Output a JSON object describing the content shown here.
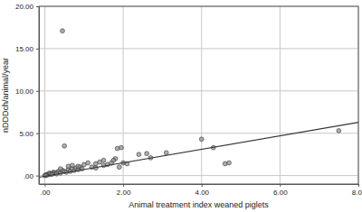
{
  "chart_data": {
    "type": "scatter",
    "x_label": "Animal treatment index weaned piglets",
    "y_label": "nDDDch/animal/year",
    "xlim": [
      -0.15,
      8.0
    ],
    "ylim": [
      -1,
      20
    ],
    "xticks": [
      {
        "value": 0,
        "label": ".00"
      },
      {
        "value": 2,
        "label": "2.00"
      },
      {
        "value": 4,
        "label": "4.00"
      },
      {
        "value": 6,
        "label": "6.00"
      },
      {
        "value": 8,
        "label": "8.00"
      }
    ],
    "yticks": [
      {
        "value": 0,
        "label": ".00"
      },
      {
        "value": 5,
        "label": "5.00"
      },
      {
        "value": 10,
        "label": "10.00"
      },
      {
        "value": 15,
        "label": "15.00"
      },
      {
        "value": 20,
        "label": "20.00"
      }
    ],
    "grid": true,
    "series": [
      {
        "type": "scatter",
        "marker": "circle",
        "color": "#8c8c8c",
        "x": [
          0.45,
          0.5,
          1.85,
          1.95,
          2.4,
          2.7,
          3.1,
          4.0,
          4.3,
          4.6,
          4.7,
          7.5,
          2.6,
          1.0,
          1.1,
          1.2,
          1.3,
          1.4,
          1.5,
          1.6,
          1.7,
          1.8,
          1.9,
          2.0,
          2.1,
          1.75,
          1.5,
          1.3,
          0.02,
          0.05,
          0.08,
          0.1,
          0.12,
          0.15,
          0.2,
          0.22,
          0.25,
          0.3,
          0.35,
          0.4,
          0.45,
          0.5,
          0.55,
          0.6,
          0.65,
          0.7,
          0.75,
          0.8,
          0.85,
          0.9,
          0.95,
          0.3,
          0.18,
          0.6,
          0.7,
          0.85,
          0.4,
          0.0,
          0.03
        ],
        "values": [
          17.1,
          3.5,
          3.2,
          3.3,
          2.5,
          2.1,
          2.7,
          4.3,
          3.3,
          1.4,
          1.5,
          5.3,
          2.6,
          1.3,
          1.5,
          1.0,
          1.4,
          1.6,
          1.2,
          1.3,
          1.5,
          2.0,
          1.0,
          1.5,
          1.4,
          1.8,
          1.8,
          0.9,
          0.05,
          0.1,
          0.15,
          0.1,
          0.3,
          0.2,
          0.25,
          0.4,
          0.3,
          0.35,
          0.5,
          0.3,
          0.6,
          0.5,
          0.4,
          0.7,
          0.5,
          0.8,
          0.6,
          0.9,
          0.7,
          1.0,
          0.8,
          0.2,
          0.15,
          1.1,
          1.2,
          1.1,
          0.8,
          0.0,
          0.02
        ]
      },
      {
        "type": "line",
        "line_style": "solid",
        "color": "#333333",
        "x": [
          -0.15,
          8.0
        ],
        "values": [
          -0.2,
          6.3
        ]
      }
    ]
  }
}
